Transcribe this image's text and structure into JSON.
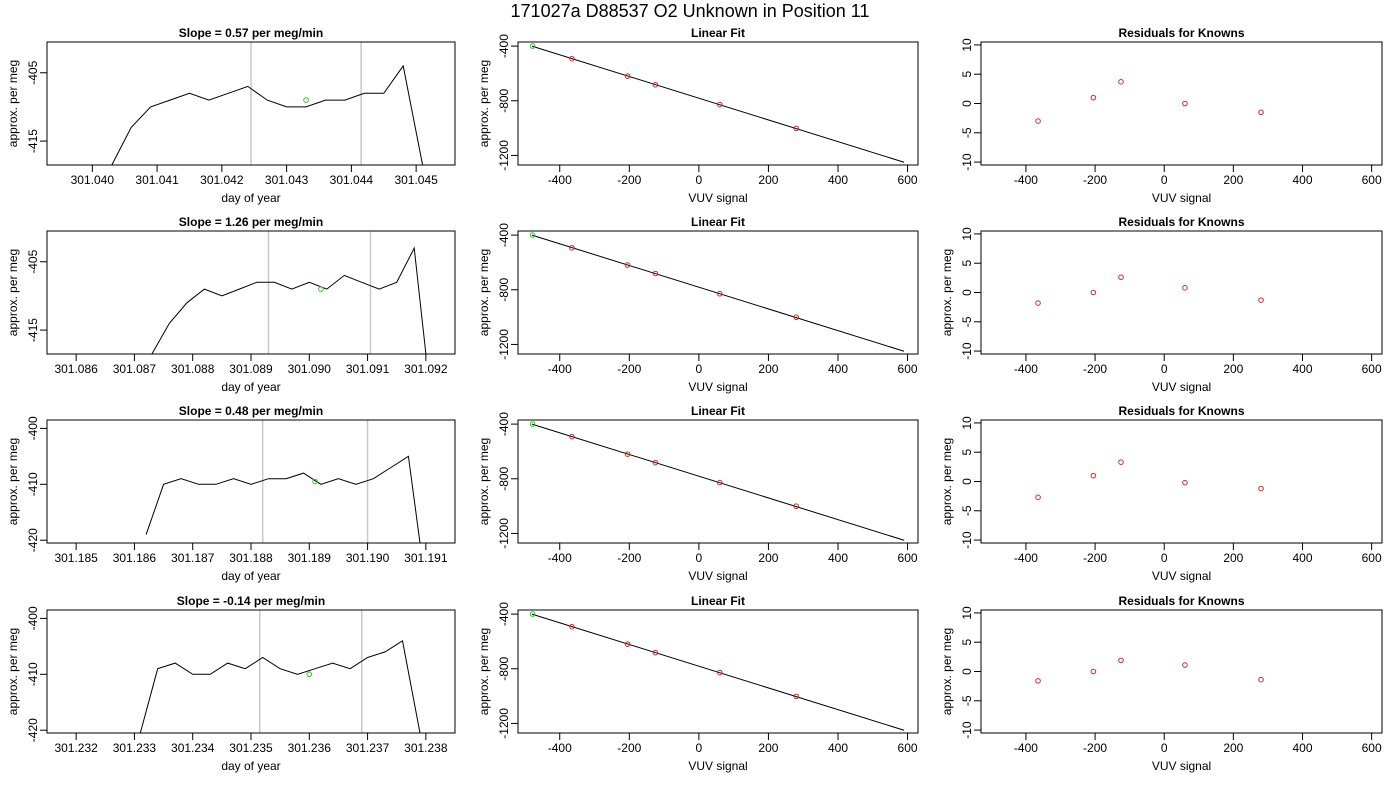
{
  "title": "171027a      D88537   O2 Unknown in Position  11",
  "chart_data": [
    {
      "type": "line",
      "panel": "time",
      "title": "Slope =  0.57  per meg/min",
      "xlabel": "day of year",
      "ylabel": "approx. per meg",
      "xlim": [
        301.0393,
        301.0456
      ],
      "ylim": [
        -418.5,
        -400.5
      ],
      "xticks": [
        "301.040",
        "301.041",
        "301.042",
        "301.043",
        "301.044",
        "301.045"
      ],
      "yticks": [
        "-405",
        "-415"
      ],
      "vlines": [
        301.04245,
        301.04415
      ],
      "series": [
        {
          "x": [
            301.0403,
            301.0406,
            301.0409,
            301.0412,
            301.0415,
            301.0418,
            301.0421,
            301.0424,
            301.0427,
            301.043,
            301.0433,
            301.0436,
            301.0439,
            301.0442,
            301.0445,
            301.0448,
            301.0451
          ],
          "values": [
            -418.5,
            -413,
            -410,
            -409,
            -408,
            -409,
            -408,
            -407,
            -409,
            -410,
            -410,
            -409,
            -409,
            -408,
            -408,
            -404,
            -418.5
          ]
        }
      ],
      "highlight_point": {
        "x": 301.0433,
        "y": -409
      }
    },
    {
      "type": "scatter",
      "panel": "fit",
      "title": "Linear Fit",
      "xlabel": "VUV signal",
      "ylabel": "approx. per meg",
      "xlim": [
        -520,
        630
      ],
      "ylim": [
        -1270,
        -370
      ],
      "xticks": [
        "-400",
        "-200",
        "0",
        "200",
        "400",
        "600"
      ],
      "yticks": [
        "-400",
        "-800",
        "-1200"
      ],
      "fit_line": {
        "x": [
          -480,
          590
        ],
        "y": [
          -400,
          -1250
        ]
      },
      "points": {
        "x": [
          -365,
          -205,
          -125,
          60,
          280
        ],
        "y": [
          -492,
          -620,
          -683,
          -828,
          -1002
        ]
      },
      "highlight_point": {
        "x": -478,
        "y": -400
      }
    },
    {
      "type": "scatter",
      "panel": "residual",
      "title": "Residuals for Knowns",
      "xlabel": "VUV signal",
      "ylabel": "",
      "xlim": [
        -530,
        630
      ],
      "ylim": [
        -10.5,
        10.5
      ],
      "xticks": [
        "-400",
        "-200",
        "0",
        "200",
        "400",
        "600"
      ],
      "yticks": [
        "10",
        "5",
        "0",
        "-5",
        "-10"
      ],
      "points": {
        "x": [
          -365,
          -205,
          -125,
          60,
          280
        ],
        "y": [
          -3,
          1,
          3.7,
          0,
          -1.5
        ]
      }
    },
    {
      "type": "line",
      "panel": "time",
      "title": "Slope =  1.26  per meg/min",
      "xlabel": "day of year",
      "ylabel": "approx. per meg",
      "xlim": [
        301.0855,
        301.0925
      ],
      "ylim": [
        -418.5,
        -400.5
      ],
      "xticks": [
        "301.086",
        "301.087",
        "301.088",
        "301.089",
        "301.090",
        "301.091",
        "301.092"
      ],
      "yticks": [
        "-405",
        "-415"
      ],
      "vlines": [
        301.0893,
        301.09105
      ],
      "series": [
        {
          "x": [
            301.0873,
            301.0876,
            301.0879,
            301.0882,
            301.0885,
            301.0888,
            301.0891,
            301.0894,
            301.0897,
            301.09,
            301.0903,
            301.0906,
            301.0909,
            301.0912,
            301.0915,
            301.0918,
            301.092
          ],
          "values": [
            -418.5,
            -414,
            -411,
            -409,
            -410,
            -409,
            -408,
            -408,
            -409,
            -408,
            -409,
            -407,
            -408,
            -409,
            -408,
            -403,
            -418.5
          ]
        }
      ],
      "highlight_point": {
        "x": 301.0902,
        "y": -409
      }
    },
    {
      "type": "scatter",
      "panel": "fit",
      "title": "Linear Fit",
      "xlabel": "VUV signal",
      "ylabel": "approx. per meg",
      "xlim": [
        -520,
        630
      ],
      "ylim": [
        -1270,
        -370
      ],
      "xticks": [
        "-400",
        "-200",
        "0",
        "200",
        "400",
        "600"
      ],
      "yticks": [
        "-400",
        "-800",
        "-1200"
      ],
      "fit_line": {
        "x": [
          -480,
          590
        ],
        "y": [
          -400,
          -1250
        ]
      },
      "points": {
        "x": [
          -365,
          -205,
          -125,
          60,
          280
        ],
        "y": [
          -493,
          -619,
          -681,
          -829,
          -1001
        ]
      },
      "highlight_point": {
        "x": -478,
        "y": -400
      }
    },
    {
      "type": "scatter",
      "panel": "residual",
      "title": "Residuals for Knowns",
      "xlabel": "VUV signal",
      "ylabel": "approx. per meg",
      "xlim": [
        -530,
        630
      ],
      "ylim": [
        -10.5,
        10.5
      ],
      "xticks": [
        "-400",
        "-200",
        "0",
        "200",
        "400",
        "600"
      ],
      "yticks": [
        "10",
        "5",
        "0",
        "-5",
        "-10"
      ],
      "points": {
        "x": [
          -365,
          -205,
          -125,
          60,
          280
        ],
        "y": [
          -1.8,
          0,
          2.6,
          0.8,
          -1.3
        ]
      }
    },
    {
      "type": "line",
      "panel": "time",
      "title": "Slope =  0.48  per meg/min",
      "xlabel": "day of year",
      "ylabel": "approx. per meg",
      "xlim": [
        301.1845,
        301.1915
      ],
      "ylim": [
        -420.5,
        -398.5
      ],
      "xticks": [
        "301.185",
        "301.186",
        "301.187",
        "301.188",
        "301.189",
        "301.190",
        "301.191"
      ],
      "yticks": [
        "-400",
        "-410",
        "-420"
      ],
      "vlines": [
        301.1882,
        301.19
      ],
      "series": [
        {
          "x": [
            301.1862,
            301.1865,
            301.1868,
            301.1871,
            301.1874,
            301.1877,
            301.188,
            301.1883,
            301.1886,
            301.1889,
            301.1892,
            301.1895,
            301.1898,
            301.1901,
            301.1904,
            301.1907,
            301.1909
          ],
          "values": [
            -419,
            -410,
            -409,
            -410,
            -410,
            -409,
            -410,
            -409,
            -409,
            -408,
            -410,
            -409,
            -410,
            -409,
            -407,
            -405,
            -420.5
          ]
        }
      ],
      "highlight_point": {
        "x": 301.1891,
        "y": -409.5
      }
    },
    {
      "type": "scatter",
      "panel": "fit",
      "title": "Linear Fit",
      "xlabel": "VUV signal",
      "ylabel": "approx. per meg",
      "xlim": [
        -520,
        630
      ],
      "ylim": [
        -1270,
        -370
      ],
      "xticks": [
        "-400",
        "-200",
        "0",
        "200",
        "400",
        "600"
      ],
      "yticks": [
        "-400",
        "-800",
        "-1200"
      ],
      "fit_line": {
        "x": [
          -480,
          590
        ],
        "y": [
          -400,
          -1250
        ]
      },
      "points": {
        "x": [
          -365,
          -205,
          -125,
          60,
          280
        ],
        "y": [
          -492,
          -620,
          -682,
          -828,
          -1001
        ]
      },
      "highlight_point": {
        "x": -478,
        "y": -400
      }
    },
    {
      "type": "scatter",
      "panel": "residual",
      "title": "Residuals for Knowns",
      "xlabel": "VUV signal",
      "ylabel": "approx. per meg",
      "xlim": [
        -530,
        630
      ],
      "ylim": [
        -10.5,
        10.5
      ],
      "xticks": [
        "-400",
        "-200",
        "0",
        "200",
        "400",
        "600"
      ],
      "yticks": [
        "10",
        "5",
        "0",
        "-5",
        "-10"
      ],
      "points": {
        "x": [
          -365,
          -205,
          -125,
          60,
          280
        ],
        "y": [
          -2.7,
          1,
          3.3,
          -0.2,
          -1.2
        ]
      }
    },
    {
      "type": "line",
      "panel": "time",
      "title": "Slope =  -0.14  per meg/min",
      "xlabel": "day of year",
      "ylabel": "approx. per meg",
      "xlim": [
        301.2315,
        301.2385
      ],
      "ylim": [
        -420.5,
        -398.5
      ],
      "xticks": [
        "301.232",
        "301.233",
        "301.234",
        "301.235",
        "301.236",
        "301.237",
        "301.238"
      ],
      "yticks": [
        "-400",
        "-410",
        "-420"
      ],
      "vlines": [
        301.23515,
        301.2369
      ],
      "series": [
        {
          "x": [
            301.2331,
            301.2334,
            301.2337,
            301.234,
            301.2343,
            301.2346,
            301.2349,
            301.2352,
            301.2355,
            301.2358,
            301.2361,
            301.2364,
            301.2367,
            301.237,
            301.2373,
            301.2376,
            301.2379
          ],
          "values": [
            -420.5,
            -409,
            -408,
            -410,
            -410,
            -408,
            -409,
            -407,
            -409,
            -410,
            -409,
            -408,
            -409,
            -407,
            -406,
            -404,
            -420.5
          ]
        }
      ],
      "highlight_point": {
        "x": 301.236,
        "y": -410
      }
    },
    {
      "type": "scatter",
      "panel": "fit",
      "title": "Linear Fit",
      "xlabel": "VUV signal",
      "ylabel": "approx. per meg",
      "xlim": [
        -520,
        630
      ],
      "ylim": [
        -1270,
        -370
      ],
      "xticks": [
        "-400",
        "-200",
        "0",
        "200",
        "400",
        "600"
      ],
      "yticks": [
        "-400",
        "-800",
        "-1200"
      ],
      "fit_line": {
        "x": [
          -480,
          590
        ],
        "y": [
          -400,
          -1250
        ]
      },
      "points": {
        "x": [
          -365,
          -205,
          -125,
          60,
          280
        ],
        "y": [
          -492,
          -620,
          -682,
          -828,
          -1002
        ]
      },
      "highlight_point": {
        "x": -478,
        "y": -400
      }
    },
    {
      "type": "scatter",
      "panel": "residual",
      "title": "Residuals for Knowns",
      "xlabel": "VUV signal",
      "ylabel": "approx. per meg",
      "xlim": [
        -530,
        630
      ],
      "ylim": [
        -10.5,
        10.5
      ],
      "xticks": [
        "-400",
        "-200",
        "0",
        "200",
        "400",
        "600"
      ],
      "yticks": [
        "10",
        "5",
        "0",
        "-5",
        "-10"
      ],
      "points": {
        "x": [
          -365,
          -205,
          -125,
          60,
          280
        ],
        "y": [
          -1.6,
          0,
          1.9,
          1.1,
          -1.4
        ]
      }
    }
  ],
  "colors": {
    "line": "#000000",
    "vline": "#c8c8c8",
    "known": "#d62828",
    "unknown": "#22cc22"
  }
}
